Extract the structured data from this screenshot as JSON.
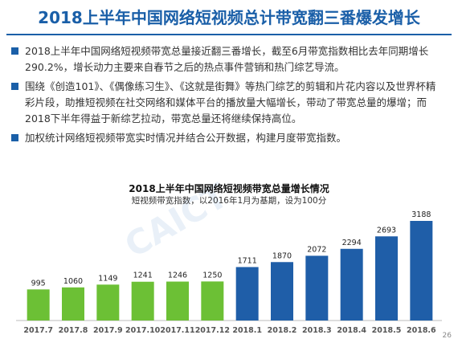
{
  "title": "2018上半年中国网络短视频总计带宽翻三番爆发增长",
  "bullets": [
    "2018上半年中国网络短视频带宽总量接近翻三番增长，截至6月带宽指数相比去年同期增长290.2%，增长动力主要来自春节之后的热点事件营销和热门综艺导流。",
    "围绕《创造101》、《偶像练习生》、《这就是街舞》等热门综艺的剪辑和片花内容以及世界杯精彩片段，助推短视频在社交网络和媒体平台的播放量大幅增长，带动了带宽总量的爆增；而2018下半年得益于新综艺拉动，带宽总量还将继续保持高位。",
    "加权统计网络短视频带宽实时情况并结合公开数据，构建月度带宽指数。"
  ],
  "page_number": "26",
  "watermark": "CAICT",
  "colors": {
    "title": "#1a5fa8",
    "green": "#6cc035",
    "blue": "#1f5ea8"
  },
  "chart_data": {
    "type": "bar",
    "title": "2018上半年中国网络短视频带宽总量增长情况",
    "subtitle": "短视频带宽指数，以2016年1月为基期，设为100分",
    "categories": [
      "2017.7",
      "2017.8",
      "2017.9",
      "2017.10",
      "2017.11",
      "2017.12",
      "2018.1",
      "2018.2",
      "2018.3",
      "2018.4",
      "2018.5",
      "2018.6"
    ],
    "values": [
      995,
      1060,
      1149,
      1241,
      1246,
      1250,
      1711,
      1870,
      2072,
      2294,
      2693,
      3188
    ],
    "bar_colors": [
      "#6cc035",
      "#6cc035",
      "#6cc035",
      "#6cc035",
      "#6cc035",
      "#6cc035",
      "#1f5ea8",
      "#1f5ea8",
      "#1f5ea8",
      "#1f5ea8",
      "#1f5ea8",
      "#1f5ea8"
    ],
    "ylim": [
      0,
      3188
    ]
  }
}
